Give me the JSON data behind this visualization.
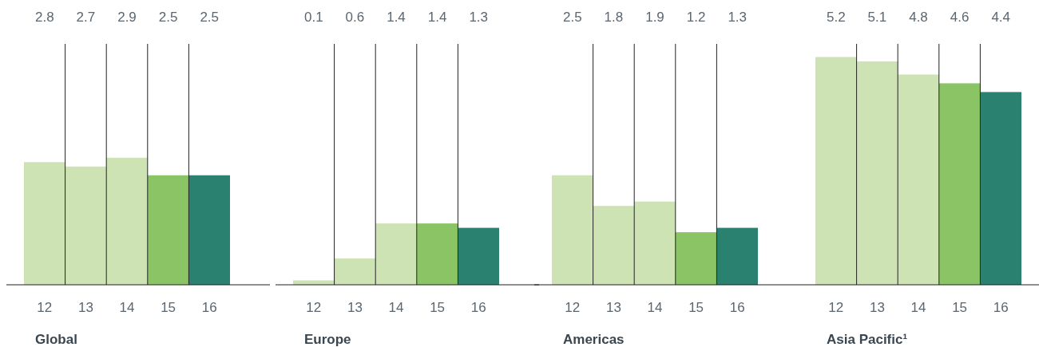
{
  "chart_data": [
    {
      "type": "bar",
      "xlabel": "Global",
      "categories": [
        "12",
        "13",
        "14",
        "15",
        "16"
      ],
      "values": [
        2.8,
        2.7,
        2.9,
        2.5,
        2.5
      ],
      "colors": [
        "#cde3b4",
        "#cde3b4",
        "#cde3b4",
        "#8bc464",
        "#2a8170"
      ],
      "ylim": [
        0,
        5.5
      ],
      "data_labels": true,
      "grid": "x",
      "tick_labels": "x"
    },
    {
      "type": "bar",
      "xlabel": "Europe",
      "categories": [
        "12",
        "13",
        "14",
        "15",
        "16"
      ],
      "values": [
        0.1,
        0.6,
        1.4,
        1.4,
        1.3
      ],
      "colors": [
        "#cde3b4",
        "#cde3b4",
        "#cde3b4",
        "#8bc464",
        "#2a8170"
      ],
      "ylim": [
        0,
        5.5
      ],
      "data_labels": true,
      "grid": "x",
      "tick_labels": "x"
    },
    {
      "type": "bar",
      "xlabel": "Americas",
      "categories": [
        "12",
        "13",
        "14",
        "15",
        "16"
      ],
      "values": [
        2.5,
        1.8,
        1.9,
        1.2,
        1.3
      ],
      "colors": [
        "#cde3b4",
        "#cde3b4",
        "#cde3b4",
        "#8bc464",
        "#2a8170"
      ],
      "ylim": [
        0,
        5.5
      ],
      "data_labels": true,
      "grid": "x",
      "tick_labels": "x"
    },
    {
      "type": "bar",
      "xlabel": "Asia Pacific¹",
      "categories": [
        "12",
        "13",
        "14",
        "15",
        "16"
      ],
      "values": [
        5.2,
        5.1,
        4.8,
        4.6,
        4.4
      ],
      "colors": [
        "#cde3b4",
        "#cde3b4",
        "#cde3b4",
        "#8bc464",
        "#2a8170"
      ],
      "ylim": [
        0,
        5.5
      ],
      "data_labels": true,
      "grid": "x",
      "tick_labels": "x"
    }
  ]
}
